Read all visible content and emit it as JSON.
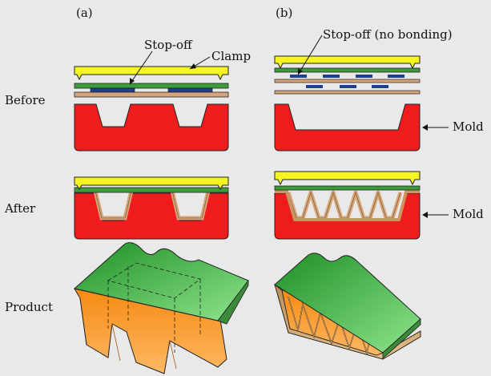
{
  "labels": {
    "panel_a": "(a)",
    "panel_b": "(b)",
    "stopoff": "Stop-off",
    "clamp": "Clamp",
    "stopoff_nobond": "Stop-off (no bonding)",
    "before": "Before",
    "after": "After",
    "product": "Product",
    "mold_1": "Mold",
    "mold_2": "Mold"
  },
  "colors": {
    "background": "#e9e9e9",
    "mold": "#ee1c1c",
    "clamp": "#f5f523",
    "green_sheet": "#3e9b3c",
    "tan_sheet": "#d6a67a",
    "stopoff": "#1f3f8f",
    "product_top": "#44c447",
    "product_orange": "#f08b1c"
  }
}
